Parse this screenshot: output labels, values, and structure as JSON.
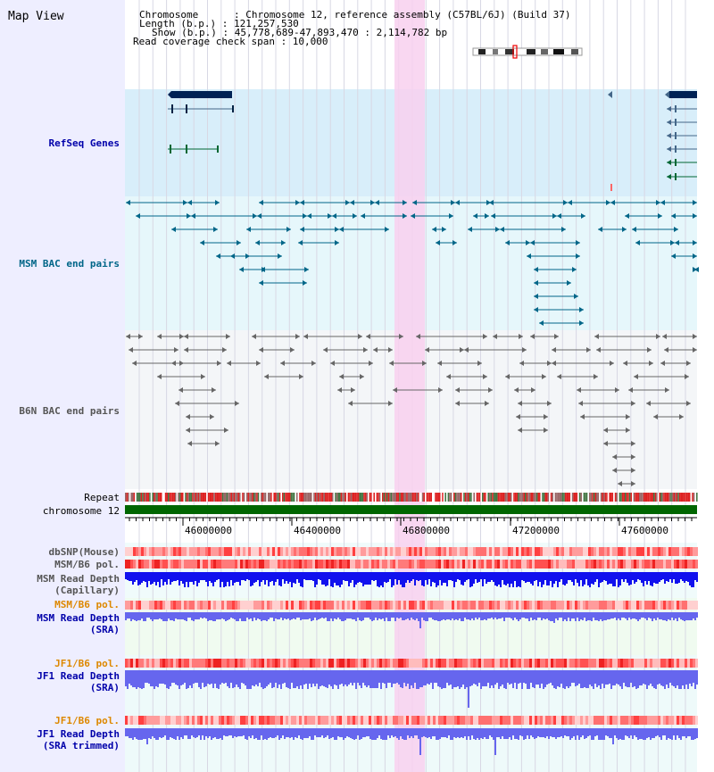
{
  "header": {
    "title": "Map View",
    "chromosome": "Chromosome      : Chromosome 12, reference assembly (C57BL/6J) (Build 37)",
    "length": "Length (b.p.) : 121,257,530",
    "show": "Show (b.p.) : 45,778,689-47,893,470 : 2,114,782 bp",
    "coverage": "Read coverage check span : 10,000"
  },
  "tracks": {
    "refseq": "RefSeq Genes",
    "msm_bac": "MSM BAC end pairs",
    "b6n_bac": "B6N BAC end pairs",
    "repeat": "Repeat",
    "chromosome": "chromosome 12",
    "dbsnp": "dbSNP(Mouse)",
    "msm_b6_pol": "MSM/B6 pol.",
    "msm_rd_cap_1": "MSM Read Depth",
    "msm_rd_cap_2": "(Capillary)",
    "msm_b6_pol2": "MSM/B6 pol.",
    "msm_rd_sra_1": "MSM Read Depth",
    "msm_rd_sra_2": "(SRA)",
    "jf1_b6_pol": "JF1/B6 pol.",
    "jf1_rd_sra_1": "JF1 Read Depth",
    "jf1_rd_sra_2": "(SRA)",
    "jf1_b6_pol2": "JF1/B6 pol.",
    "jf1_rd_trim_1": "JF1 Read Depth",
    "jf1_rd_trim_2": "(SRA trimmed)"
  },
  "ruler": {
    "ticks": [
      "46000000",
      "46400000",
      "46800000",
      "47200000",
      "47600000"
    ]
  },
  "colors": {
    "sidebar": "#eeeeff",
    "highlight": "#f8d0ee",
    "refseq_bg": "#d8eefa",
    "msm_bg": "#e6f7fb",
    "b6n_bg": "#f4f6f8",
    "msm_label": "#006688",
    "refseq_label": "#0000aa",
    "b6n_label": "#555555",
    "pol_label": "#dd8800",
    "depth_label": "#0000aa",
    "chrom_bar": "#006600",
    "gene_dark": "#002255",
    "gene_green": "#006633",
    "msm_feature": "#006688",
    "b6n_feature": "#666666",
    "capillary_depth": "#1111ee",
    "sra_depth": "#6666ee"
  }
}
